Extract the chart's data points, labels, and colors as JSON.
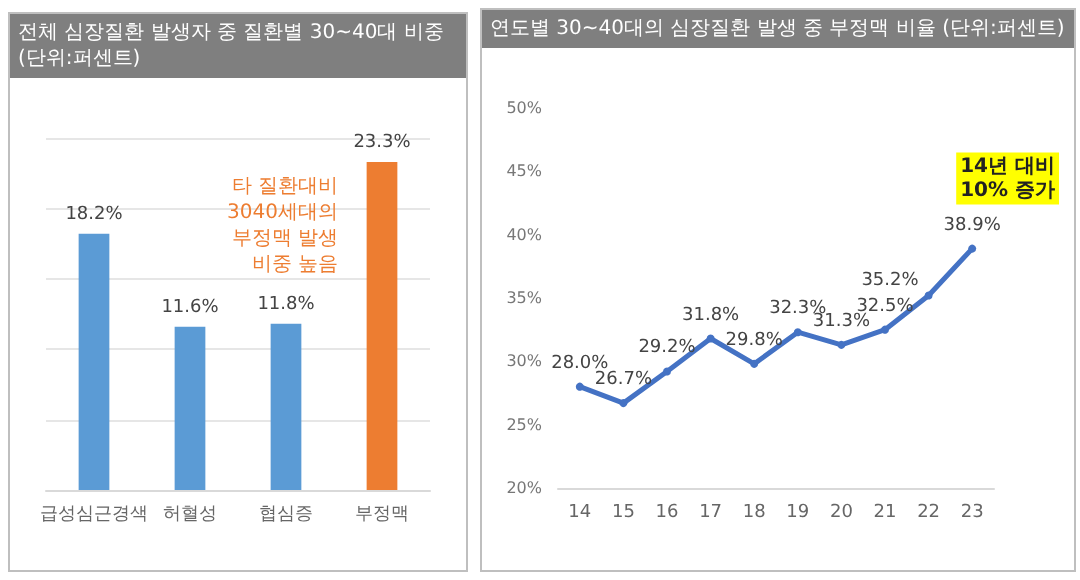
{
  "chart_data": [
    {
      "type": "bar",
      "title": "전체 심장질환 발생자 중 질환별 30~40대 비중",
      "subtitle": "(단위:퍼센트)",
      "categories": [
        "급성심근경색",
        "허혈성",
        "협심증",
        "부정맥"
      ],
      "values": [
        18.2,
        11.6,
        11.8,
        23.3
      ],
      "colors": [
        "#5b9bd5",
        "#5b9bd5",
        "#5b9bd5",
        "#ed7d31"
      ],
      "value_labels": [
        "18.2%",
        "11.6%",
        "11.8%",
        "23.3%"
      ],
      "ylim": [
        0,
        25
      ],
      "yticks": [
        {
          "value": 0,
          "label": null
        },
        {
          "value": 5,
          "label": null
        },
        {
          "value": 10,
          "label": null
        },
        {
          "value": 15,
          "label": null
        },
        {
          "value": 20,
          "label": null
        },
        {
          "value": 25,
          "label": null
        }
      ],
      "tick_labels": "x",
      "grid": "y",
      "annotations": [
        {
          "text": "타 질환대비\n3040세대의\n부정맥 발생\n비중 높음",
          "x": "부정맥",
          "y": 23.3
        }
      ]
    },
    {
      "type": "line",
      "title": "연도별 30~40대의 심장질환 발생 중 부정맥 비율",
      "subtitle": "(단위:퍼센트)",
      "categories": [
        "14",
        "15",
        "16",
        "17",
        "18",
        "19",
        "20",
        "21",
        "22",
        "23"
      ],
      "values": [
        28.0,
        26.7,
        29.2,
        31.8,
        29.8,
        32.3,
        31.3,
        32.5,
        35.2,
        38.9
      ],
      "color": "#4472c4",
      "value_labels": [
        "28.0%",
        "26.7%",
        "29.2%",
        "31.8%",
        "29.8%",
        "32.3%",
        "31.3%",
        "32.5%",
        "35.2%",
        "38.9%"
      ],
      "marker": "circle",
      "ylim": [
        20,
        50
      ],
      "yticks": [
        {
          "value": 20,
          "label": "20%"
        },
        {
          "value": 25,
          "label": "25%"
        },
        {
          "value": 30,
          "label": "30%"
        },
        {
          "value": 35,
          "label": "35%"
        },
        {
          "value": 40,
          "label": "40%"
        },
        {
          "value": 45,
          "label": "45%"
        },
        {
          "value": 50,
          "label": "50%"
        }
      ],
      "grid": false,
      "annotations": [
        {
          "text": "14년 대비\n10% 증가",
          "x": "23",
          "y": 38.9
        }
      ]
    }
  ]
}
